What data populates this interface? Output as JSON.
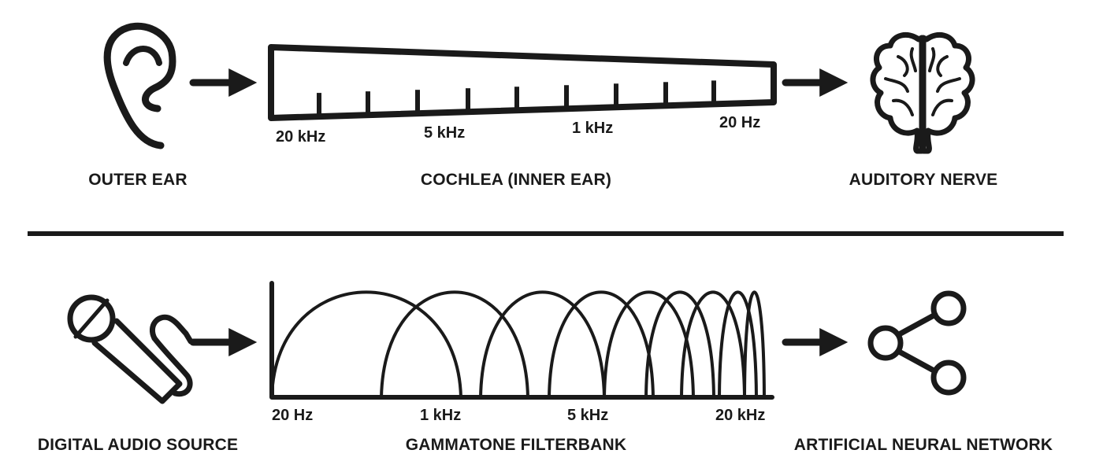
{
  "colors": {
    "ink": "#1a1a1a",
    "background": "#ffffff"
  },
  "top_row": {
    "outer_ear": {
      "icon": "ear-icon",
      "label": "OUTER EAR"
    },
    "cochlea": {
      "label": "COCHLEA (INNER EAR)",
      "tick_labels": [
        "20 kHz",
        "5 kHz",
        "1 kHz",
        "20 Hz"
      ]
    },
    "auditory_nerve": {
      "icon": "brain-icon",
      "label": "AUDITORY NERVE"
    }
  },
  "bottom_row": {
    "audio_source": {
      "icon": "microphone-icon",
      "label": "DIGITAL AUDIO SOURCE"
    },
    "filterbank": {
      "label": "GAMMATONE FILTERBANK",
      "tick_labels": [
        "20 Hz",
        "1 kHz",
        "5 kHz",
        "20 kHz"
      ]
    },
    "neural_network": {
      "icon": "share-network-icon",
      "label": "ARTIFICIAL NEURAL NETWORK"
    }
  }
}
